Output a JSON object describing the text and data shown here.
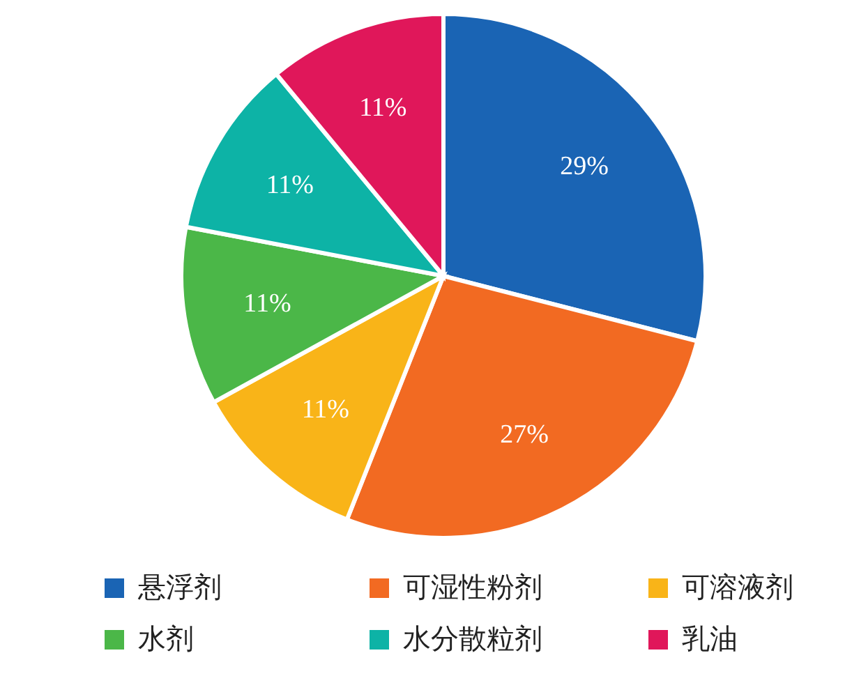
{
  "chart_data": {
    "type": "pie",
    "categories": [
      "悬浮剂",
      "可湿性粉剂",
      "可溶液剂",
      "水剂",
      "水分散粒剂",
      "乳油"
    ],
    "values": [
      29,
      27,
      11,
      11,
      11,
      11
    ],
    "colors": [
      "#1a64b4",
      "#f26a22",
      "#f9b418",
      "#4bb748",
      "#0db3a6",
      "#e0175a"
    ],
    "value_labels": [
      "29%",
      "27%",
      "11%",
      "11%",
      "11%",
      "11%"
    ],
    "legend": "bottom"
  }
}
